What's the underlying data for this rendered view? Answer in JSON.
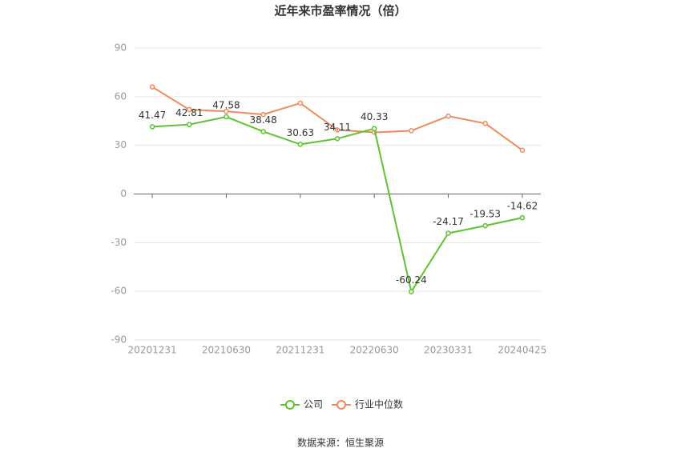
{
  "chart_data": {
    "type": "line",
    "title": "近年来市盈率情况（倍）",
    "categories": [
      "20201231",
      null,
      "20210630",
      null,
      "20211231",
      null,
      "20220630",
      null,
      "20230331",
      null,
      "20240425"
    ],
    "series": [
      {
        "name": "公司",
        "color": "#5dc22f",
        "show_labels": true,
        "values": [
          41.47,
          42.81,
          47.58,
          38.48,
          30.63,
          34.11,
          40.33,
          -60.24,
          -24.17,
          -19.53,
          -14.62
        ]
      },
      {
        "name": "行业中位数",
        "color": "#f08a5c",
        "show_labels": false,
        "values": [
          66,
          52,
          51,
          49,
          56,
          39.5,
          38,
          39,
          48,
          43.5,
          27
        ]
      }
    ],
    "ylim": [
      -90,
      90
    ],
    "yticks": [
      -90,
      -60,
      -30,
      0,
      30,
      60,
      90
    ],
    "grid": true,
    "legend": "bottom",
    "source": "数据来源：恒生聚源"
  }
}
